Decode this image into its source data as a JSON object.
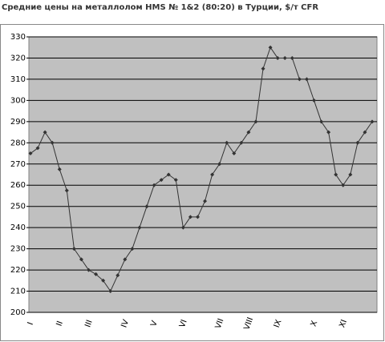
{
  "chart_data": {
    "type": "line",
    "title": "Средние цены на металлолом HMS № 1&2 (80:20) в Турции, $/т CFR",
    "categories": [
      "I",
      null,
      null,
      null,
      "II",
      null,
      null,
      null,
      "III",
      null,
      null,
      null,
      null,
      "IV",
      null,
      null,
      null,
      "V",
      null,
      null,
      null,
      "VI",
      null,
      null,
      null,
      null,
      "VII",
      null,
      null,
      null,
      "VIII",
      null,
      null,
      null,
      "IX",
      null,
      null,
      null,
      null,
      "X",
      null,
      null,
      null,
      "XI",
      null,
      null,
      null,
      null
    ],
    "series": [
      {
        "name": "HMS 1&2 (80:20)",
        "color": "#333333",
        "values": [
          275,
          277.5,
          285,
          280,
          267.5,
          257.5,
          230,
          225,
          220,
          218,
          215,
          210,
          217.5,
          225,
          230,
          240,
          250,
          260,
          262.5,
          265,
          262.5,
          240,
          245,
          245,
          252.5,
          265,
          270,
          280,
          275,
          280,
          285,
          290,
          315,
          325,
          320,
          320,
          320,
          310,
          310,
          300,
          290,
          285,
          265,
          260,
          265,
          280,
          285,
          290
        ]
      }
    ],
    "ylim": [
      200,
      330
    ],
    "yticks": [
      200,
      210,
      220,
      230,
      240,
      250,
      260,
      270,
      280,
      290,
      300,
      310,
      320,
      330
    ],
    "grid": true,
    "plot_background": "#c0c0c0"
  }
}
